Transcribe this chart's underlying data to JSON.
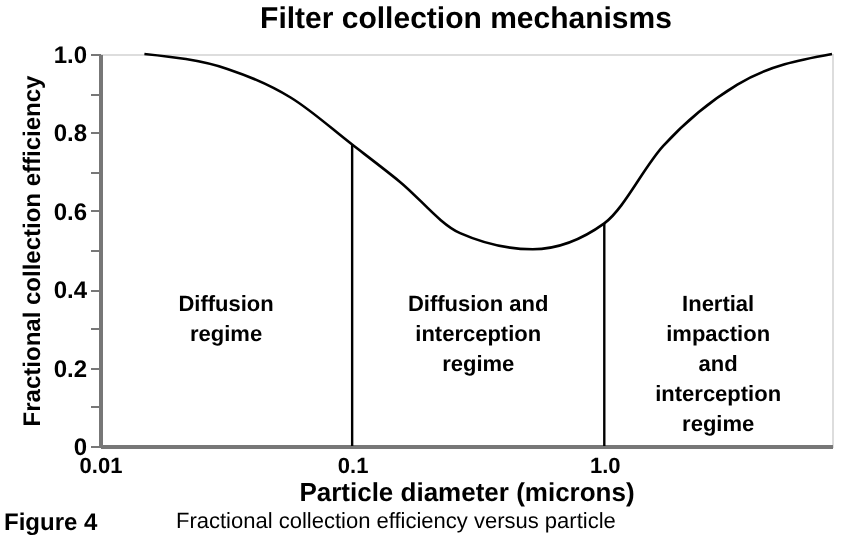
{
  "chart_data": {
    "type": "line",
    "title": "Filter collection mechanisms",
    "xlabel": "Particle diameter (microns)",
    "ylabel": "Fractional collection efficiency",
    "x": [
      0.015,
      0.032,
      0.057,
      0.1,
      0.154,
      0.268,
      0.52,
      1.0,
      1.71,
      3.37,
      8
    ],
    "series": [
      {
        "color": "#000000",
        "values": [
          1.0,
          0.962,
          0.889,
          0.769,
          0.675,
          0.543,
          0.502,
          0.568,
          0.765,
          0.922,
          1.0
        ]
      }
    ],
    "log": "x",
    "xlim": [
      0.01,
      8
    ],
    "xticks": [
      0.01,
      0.1,
      {
        "value": 1,
        "label": "1.0"
      }
    ],
    "ylim": [
      0,
      1
    ],
    "yticks": [
      0,
      {
        "value": 0.1,
        "label": null
      },
      0.2,
      {
        "value": 0.3,
        "label": null
      },
      0.4,
      {
        "value": 0.5,
        "label": null
      },
      0.6,
      {
        "value": 0.7,
        "label": null
      },
      0.8,
      {
        "value": 0.9,
        "label": null
      },
      {
        "value": 1,
        "label": "1.0"
      }
    ],
    "ref_lines": [
      {
        "axis": "x",
        "value": 0.1,
        "color": "#000000"
      },
      {
        "axis": "x",
        "value": 1.0,
        "color": "#000000"
      }
    ],
    "annotations": [
      "Diffusion\nregime",
      "Diffusion and\ninterception\nregime",
      "Inertial\nimpaction\nand\ninterception\nregime",
      "Figure 4",
      "Fractional collection efficiency versus particle"
    ],
    "grid": false,
    "marker": "none",
    "line_style": "solid"
  }
}
